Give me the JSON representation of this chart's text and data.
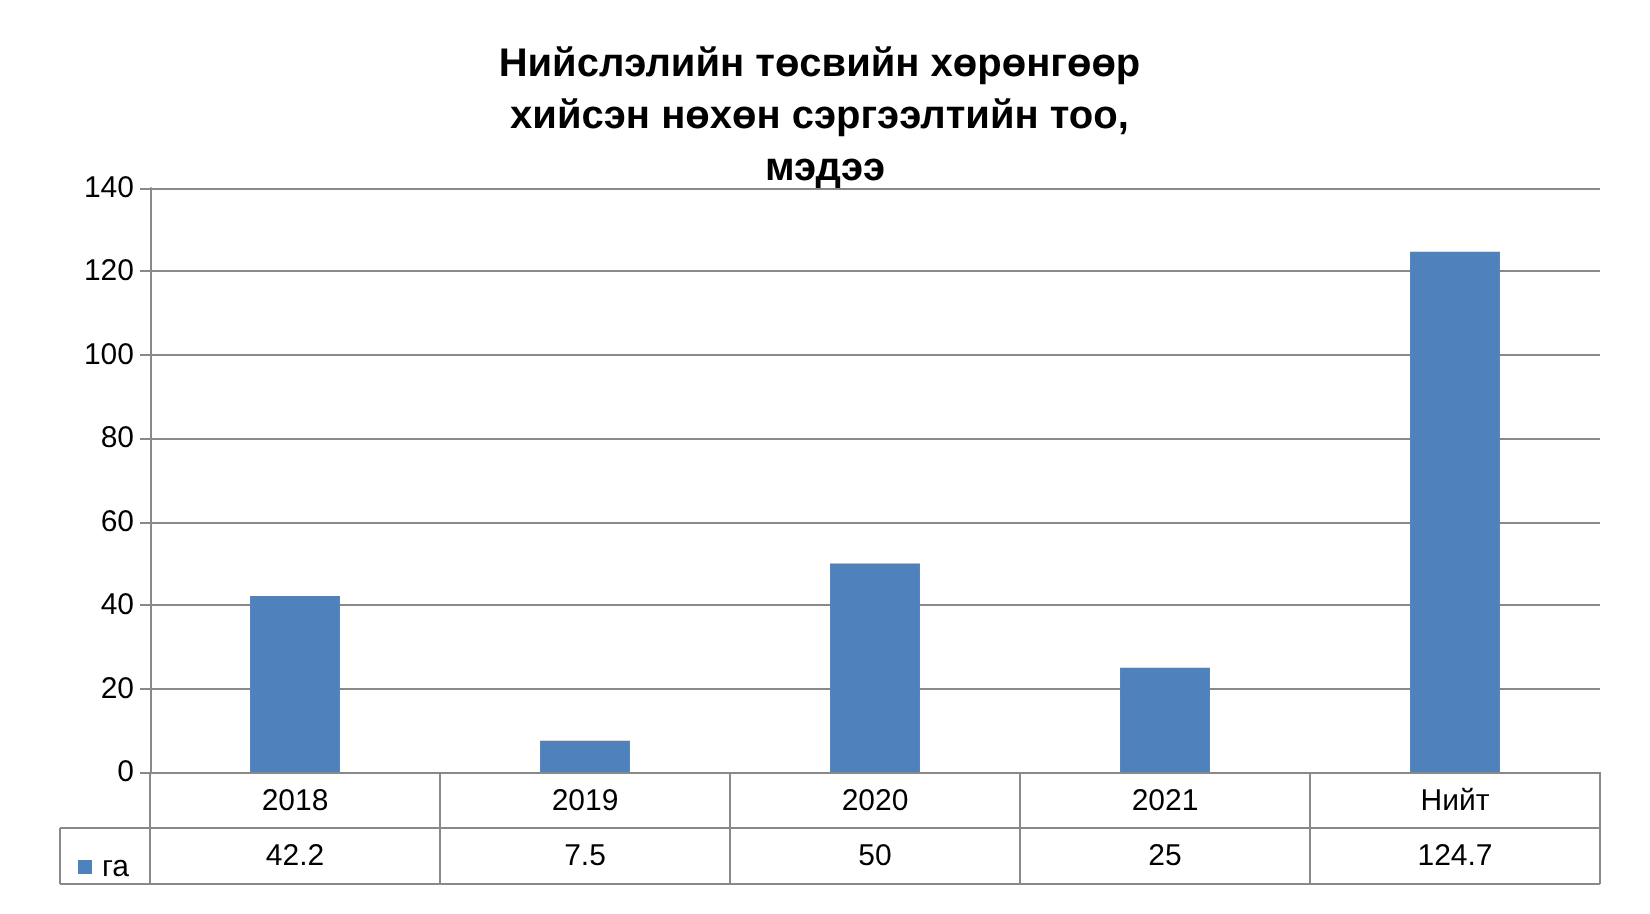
{
  "chart_data": {
    "type": "bar",
    "title": "Нийслэлийн төсвийн хөрөнгөөр хийсэн нөхөн сэргээлтийн тоо, мэдээ",
    "categories": [
      "2018",
      "2019",
      "2020",
      "2021",
      "Нийт"
    ],
    "series": [
      {
        "name": "га",
        "color": "#4f81bd",
        "values": [
          42.2,
          7.5,
          50,
          25,
          124.7
        ]
      }
    ],
    "ylim": [
      0,
      140
    ],
    "yticks": [
      0,
      20,
      40,
      60,
      80,
      100,
      120,
      140
    ],
    "grid": "y",
    "legend": "bottom",
    "data_labels": true
  }
}
